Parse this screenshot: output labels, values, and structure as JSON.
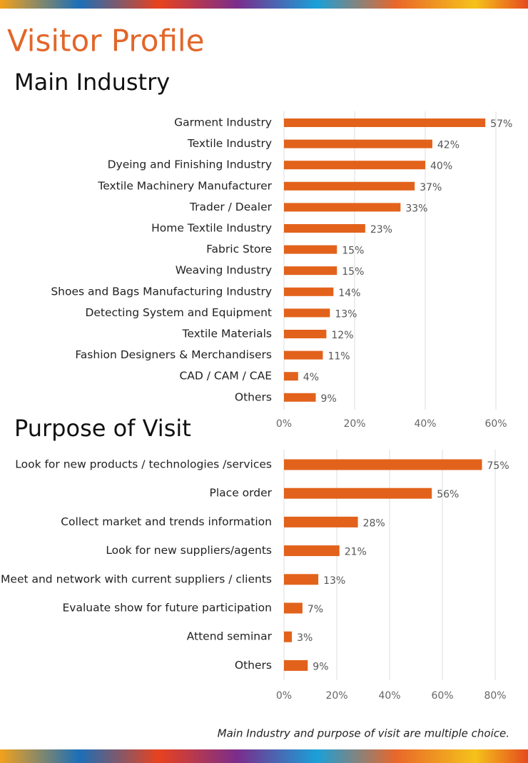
{
  "title": "Visitor Profile",
  "note": "Main Industry  and purpose of visit are multiple choice.",
  "chart_data": [
    {
      "type": "bar",
      "orientation": "horizontal",
      "title": "Main Industry",
      "color": "#e2621b",
      "grid": true,
      "categories": [
        "Garment Industry",
        "Textile Industry",
        "Dyeing and Finishing Industry",
        "Textile Machinery Manufacturer",
        "Trader / Dealer",
        "Home Textile Industry",
        "Fabric Store",
        "Weaving Industry",
        "Shoes and Bags Manufacturing Industry",
        "Detecting System and Equipment",
        "Textile Materials",
        "Fashion Designers & Merchandisers",
        "CAD / CAM / CAE",
        "Others"
      ],
      "values": [
        57,
        42,
        40,
        37,
        33,
        23,
        15,
        15,
        14,
        13,
        12,
        11,
        4,
        9
      ],
      "value_labels": [
        "57%",
        "42%",
        "40%",
        "37%",
        "33%",
        "23%",
        "15%",
        "15%",
        "14%",
        "13%",
        "12%",
        "11%",
        "4%",
        "9%"
      ],
      "xlim": [
        0,
        60
      ],
      "xticks": [
        {
          "value": 0,
          "label": "0%"
        },
        {
          "value": 20,
          "label": "20%"
        },
        {
          "value": 40,
          "label": "40%"
        },
        {
          "value": 60,
          "label": "60%"
        }
      ]
    },
    {
      "type": "bar",
      "orientation": "horizontal",
      "title": "Purpose of Visit",
      "color": "#e2621b",
      "grid": true,
      "categories": [
        "Look for new products / technologies /services",
        "Place order",
        "Collect market and trends information",
        "Look for new suppliers/agents",
        "Meet and network with current suppliers / clients",
        "Evaluate show for future participation",
        "Attend seminar",
        "Others"
      ],
      "values": [
        75,
        56,
        28,
        21,
        13,
        7,
        3,
        9
      ],
      "value_labels": [
        "75%",
        "56%",
        "28%",
        "21%",
        "13%",
        "7%",
        "3%",
        "9%"
      ],
      "xlim": [
        0,
        80
      ],
      "xticks": [
        {
          "value": 0,
          "label": "0%"
        },
        {
          "value": 20,
          "label": "20%"
        },
        {
          "value": 40,
          "label": "40%"
        },
        {
          "value": 60,
          "label": "60%"
        },
        {
          "value": 80,
          "label": "80%"
        }
      ]
    }
  ]
}
